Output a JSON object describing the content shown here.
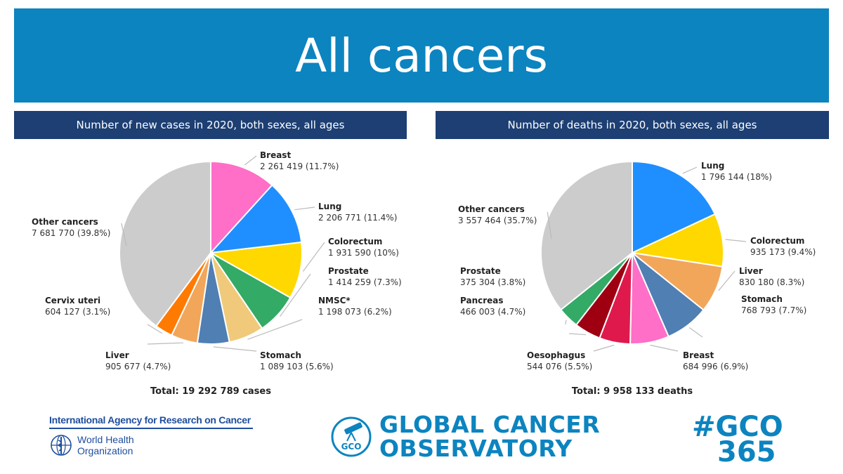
{
  "page": {
    "title": "All cancers",
    "left_header": "Number of new cases in 2020, both sexes, all ages",
    "right_header": "Number of deaths in 2020, both sexes, all ages",
    "left_total": "Total: 19 292 789 cases",
    "right_total": "Total: 9 958 133 deaths"
  },
  "logos": {
    "iarc": "International Agency for Research on Cancer",
    "who_line1": "World Health",
    "who_line2": "Organization",
    "gco_badge": "GCO",
    "gco_line1": "GLOBAL CANCER",
    "gco_line2": "OBSERVATORY",
    "hashtag_line1": "#GCO",
    "hashtag_line2": "365"
  },
  "chart_data": [
    {
      "type": "pie",
      "title": "Number of new cases in 2020, both sexes, all ages",
      "total": 19292789,
      "slices": [
        {
          "name": "Breast",
          "value": 2261419,
          "display_value": "2 261 419",
          "percent": "11.7%",
          "color": "#ff6ec7"
        },
        {
          "name": "Lung",
          "value": 2206771,
          "display_value": "2 206 771",
          "percent": "11.4%",
          "color": "#1f8fff"
        },
        {
          "name": "Colorectum",
          "value": 1931590,
          "display_value": "1 931 590",
          "percent": "10%",
          "color": "#ffd800"
        },
        {
          "name": "Prostate",
          "value": 1414259,
          "display_value": "1 414 259",
          "percent": "7.3%",
          "color": "#33aa66"
        },
        {
          "name": "NMSC*",
          "value": 1198073,
          "display_value": "1 198 073",
          "percent": "6.2%",
          "color": "#f0c97a"
        },
        {
          "name": "Stomach",
          "value": 1089103,
          "display_value": "1 089 103",
          "percent": "5.6%",
          "color": "#4f7fb3"
        },
        {
          "name": "Liver",
          "value": 905677,
          "display_value": "905 677",
          "percent": "4.7%",
          "color": "#f2a65a"
        },
        {
          "name": "Cervix uteri",
          "value": 604127,
          "display_value": "604 127",
          "percent": "3.1%",
          "color": "#ff7a00"
        },
        {
          "name": "Other cancers",
          "value": 7681770,
          "display_value": "7 681 770",
          "percent": "39.8%",
          "color": "#cccccc"
        }
      ]
    },
    {
      "type": "pie",
      "title": "Number of deaths in 2020, both sexes, all ages",
      "total": 9958133,
      "slices": [
        {
          "name": "Lung",
          "value": 1796144,
          "display_value": "1 796 144",
          "percent": "18%",
          "color": "#1f8fff"
        },
        {
          "name": "Colorectum",
          "value": 935173,
          "display_value": "935 173",
          "percent": "9.4%",
          "color": "#ffd800"
        },
        {
          "name": "Liver",
          "value": 830180,
          "display_value": "830 180",
          "percent": "8.3%",
          "color": "#f2a65a"
        },
        {
          "name": "Stomach",
          "value": 768793,
          "display_value": "768 793",
          "percent": "7.7%",
          "color": "#4f7fb3"
        },
        {
          "name": "Breast",
          "value": 684996,
          "display_value": "684 996",
          "percent": "6.9%",
          "color": "#ff6ec7"
        },
        {
          "name": "Oesophagus",
          "value": 544076,
          "display_value": "544 076",
          "percent": "5.5%",
          "color": "#e0194d"
        },
        {
          "name": "Pancreas",
          "value": 466003,
          "display_value": "466 003",
          "percent": "4.7%",
          "color": "#9e0012"
        },
        {
          "name": "Prostate",
          "value": 375304,
          "display_value": "375 304",
          "percent": "3.8%",
          "color": "#33aa66"
        },
        {
          "name": "Other cancers",
          "value": 3557464,
          "display_value": "3 557 464",
          "percent": "35.7%",
          "color": "#cccccc"
        }
      ]
    }
  ]
}
